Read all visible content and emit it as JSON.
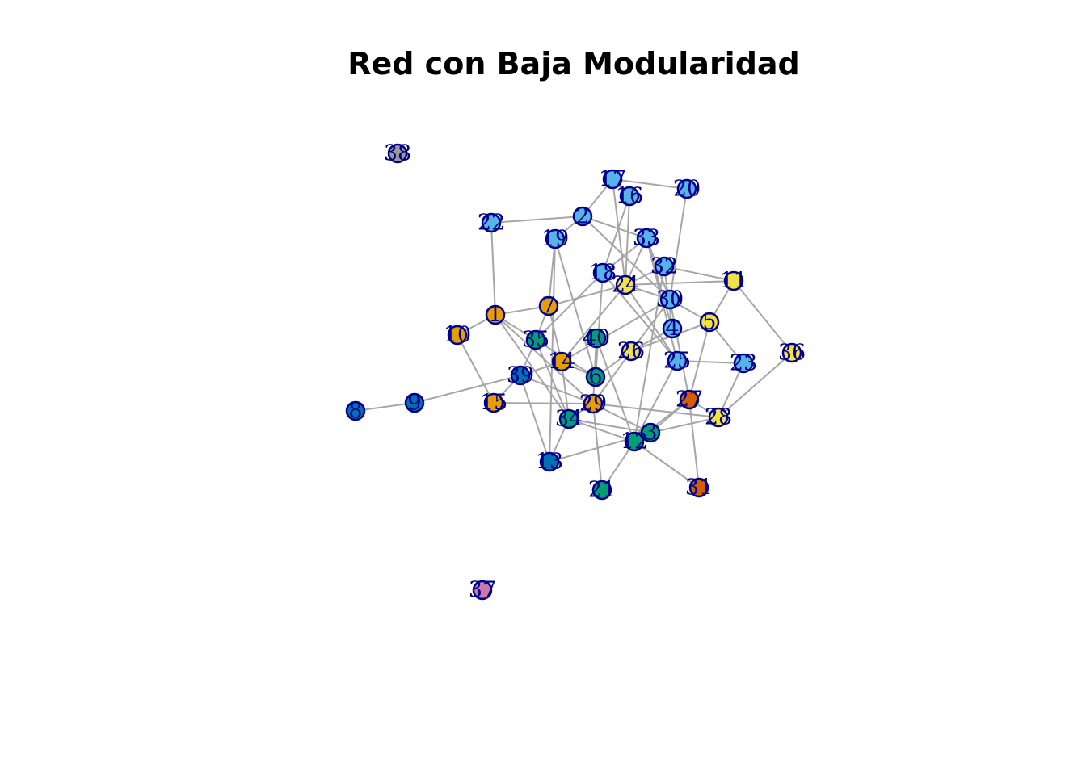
{
  "chart_data": {
    "type": "network",
    "title": "Red con Baja Modularidad",
    "colors": {
      "orange": "#E69F00",
      "skyblue": "#56B4E9",
      "green": "#009E73",
      "yellow": "#F0E442",
      "blue": "#0072B2",
      "vermillion": "#D55E00",
      "purple": "#CC79A7",
      "gray": "#999999",
      "edge": "#A6A6A6",
      "label": "#00008B"
    },
    "nodes": [
      {
        "id": "1",
        "color": "orange"
      },
      {
        "id": "2",
        "color": "skyblue"
      },
      {
        "id": "3",
        "color": "green"
      },
      {
        "id": "4",
        "color": "skyblue"
      },
      {
        "id": "5",
        "color": "yellow"
      },
      {
        "id": "6",
        "color": "green"
      },
      {
        "id": "7",
        "color": "orange"
      },
      {
        "id": "8",
        "color": "blue"
      },
      {
        "id": "9",
        "color": "blue"
      },
      {
        "id": "10",
        "color": "orange"
      },
      {
        "id": "11",
        "color": "yellow"
      },
      {
        "id": "12",
        "color": "green"
      },
      {
        "id": "13",
        "color": "blue"
      },
      {
        "id": "14",
        "color": "orange"
      },
      {
        "id": "15",
        "color": "orange"
      },
      {
        "id": "16",
        "color": "skyblue"
      },
      {
        "id": "17",
        "color": "skyblue"
      },
      {
        "id": "18",
        "color": "skyblue"
      },
      {
        "id": "19",
        "color": "skyblue"
      },
      {
        "id": "20",
        "color": "skyblue"
      },
      {
        "id": "21",
        "color": "green"
      },
      {
        "id": "22",
        "color": "skyblue"
      },
      {
        "id": "23",
        "color": "skyblue"
      },
      {
        "id": "24",
        "color": "yellow"
      },
      {
        "id": "25",
        "color": "skyblue"
      },
      {
        "id": "26",
        "color": "yellow"
      },
      {
        "id": "27",
        "color": "vermillion"
      },
      {
        "id": "28",
        "color": "yellow"
      },
      {
        "id": "29",
        "color": "orange"
      },
      {
        "id": "30",
        "color": "skyblue"
      },
      {
        "id": "31",
        "color": "vermillion"
      },
      {
        "id": "32",
        "color": "skyblue"
      },
      {
        "id": "33",
        "color": "skyblue"
      },
      {
        "id": "34",
        "color": "green"
      },
      {
        "id": "35",
        "color": "green"
      },
      {
        "id": "36",
        "color": "yellow"
      },
      {
        "id": "37",
        "color": "purple"
      },
      {
        "id": "38",
        "color": "gray"
      },
      {
        "id": "39",
        "color": "blue"
      },
      {
        "id": "40",
        "color": "green"
      }
    ],
    "edges": [
      [
        "17",
        "20"
      ],
      [
        "17",
        "2"
      ],
      [
        "17",
        "16"
      ],
      [
        "17",
        "24"
      ],
      [
        "16",
        "24"
      ],
      [
        "16",
        "18"
      ],
      [
        "20",
        "30"
      ],
      [
        "2",
        "22"
      ],
      [
        "2",
        "19"
      ],
      [
        "2",
        "33"
      ],
      [
        "2",
        "30"
      ],
      [
        "22",
        "1"
      ],
      [
        "19",
        "7"
      ],
      [
        "19",
        "13"
      ],
      [
        "19",
        "6"
      ],
      [
        "33",
        "18"
      ],
      [
        "33",
        "30"
      ],
      [
        "33",
        "4"
      ],
      [
        "33",
        "24"
      ],
      [
        "33",
        "25"
      ],
      [
        "32",
        "11"
      ],
      [
        "32",
        "24"
      ],
      [
        "32",
        "12"
      ],
      [
        "32",
        "4"
      ],
      [
        "18",
        "6"
      ],
      [
        "18",
        "25"
      ],
      [
        "18",
        "35"
      ],
      [
        "24",
        "7"
      ],
      [
        "24",
        "11"
      ],
      [
        "24",
        "30"
      ],
      [
        "24",
        "14"
      ],
      [
        "24",
        "25"
      ],
      [
        "30",
        "5"
      ],
      [
        "30",
        "26"
      ],
      [
        "30",
        "27"
      ],
      [
        "30",
        "14"
      ],
      [
        "11",
        "5"
      ],
      [
        "11",
        "36"
      ],
      [
        "5",
        "26"
      ],
      [
        "5",
        "27"
      ],
      [
        "4",
        "26"
      ],
      [
        "23",
        "25"
      ],
      [
        "23",
        "5"
      ],
      [
        "23",
        "28"
      ],
      [
        "36",
        "28"
      ],
      [
        "28",
        "29"
      ],
      [
        "28",
        "3"
      ],
      [
        "28",
        "27"
      ],
      [
        "1",
        "10"
      ],
      [
        "1",
        "7"
      ],
      [
        "1",
        "6"
      ],
      [
        "1",
        "29"
      ],
      [
        "7",
        "35"
      ],
      [
        "7",
        "14"
      ],
      [
        "10",
        "15"
      ],
      [
        "35",
        "39"
      ],
      [
        "35",
        "34"
      ],
      [
        "40",
        "29"
      ],
      [
        "40",
        "6"
      ],
      [
        "40",
        "12"
      ],
      [
        "14",
        "6"
      ],
      [
        "14",
        "34"
      ],
      [
        "39",
        "14"
      ],
      [
        "39",
        "13"
      ],
      [
        "39",
        "29"
      ],
      [
        "9",
        "8"
      ],
      [
        "9",
        "39"
      ],
      [
        "15",
        "29"
      ],
      [
        "15",
        "39"
      ],
      [
        "26",
        "6"
      ],
      [
        "26",
        "29"
      ],
      [
        "29",
        "34"
      ],
      [
        "29",
        "21"
      ],
      [
        "29",
        "3"
      ],
      [
        "34",
        "12"
      ],
      [
        "34",
        "13"
      ],
      [
        "34",
        "3"
      ],
      [
        "34",
        "1"
      ],
      [
        "12",
        "21"
      ],
      [
        "12",
        "31"
      ],
      [
        "12",
        "27"
      ],
      [
        "12",
        "25"
      ],
      [
        "3",
        "27"
      ],
      [
        "31",
        "27"
      ],
      [
        "13",
        "3"
      ]
    ]
  }
}
